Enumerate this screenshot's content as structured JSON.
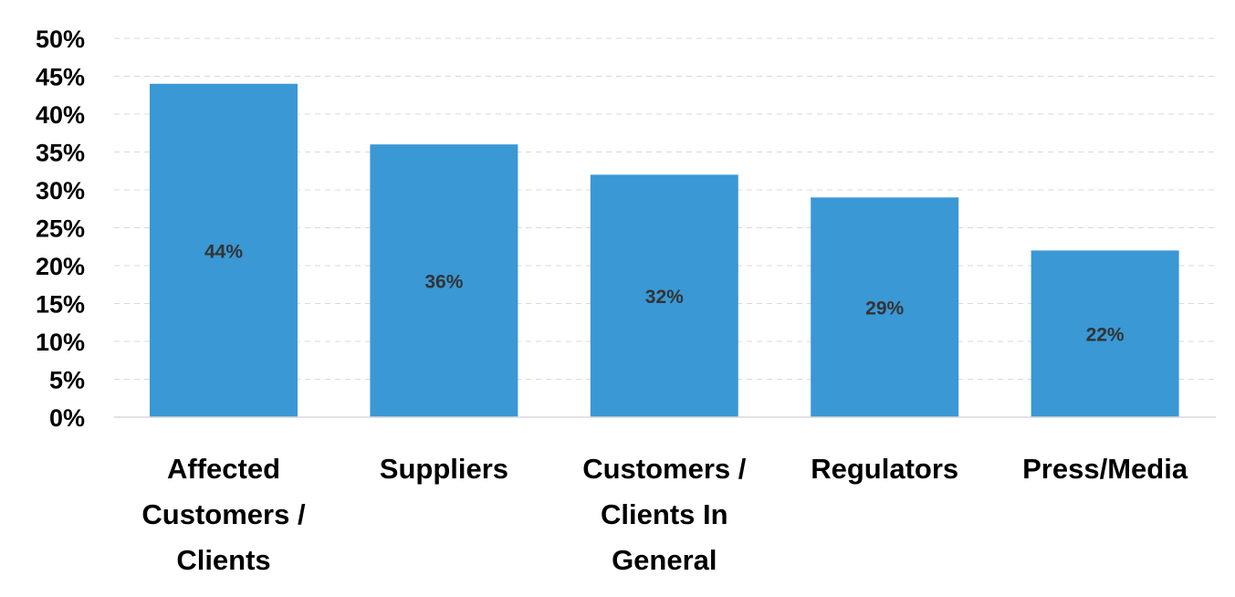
{
  "chart_data": {
    "type": "bar",
    "categories": [
      [
        "Affected",
        "Customers /",
        "Clients"
      ],
      [
        "Suppliers"
      ],
      [
        "Customers /",
        "Clients In",
        "General"
      ],
      [
        "Regulators"
      ],
      [
        "Press/Media"
      ]
    ],
    "values": [
      44,
      36,
      32,
      29,
      22
    ],
    "data_labels": [
      "44%",
      "36%",
      "32%",
      "29%",
      "22%"
    ],
    "ylim": [
      0,
      50
    ],
    "ytick_step": 5,
    "ytick_labels": [
      "0%",
      "5%",
      "10%",
      "15%",
      "20%",
      "25%",
      "30%",
      "35%",
      "40%",
      "45%",
      "50%"
    ],
    "title": "",
    "xlabel": "",
    "ylabel": "",
    "grid": true,
    "legend": "none",
    "bar_color": "#3a98d5"
  }
}
